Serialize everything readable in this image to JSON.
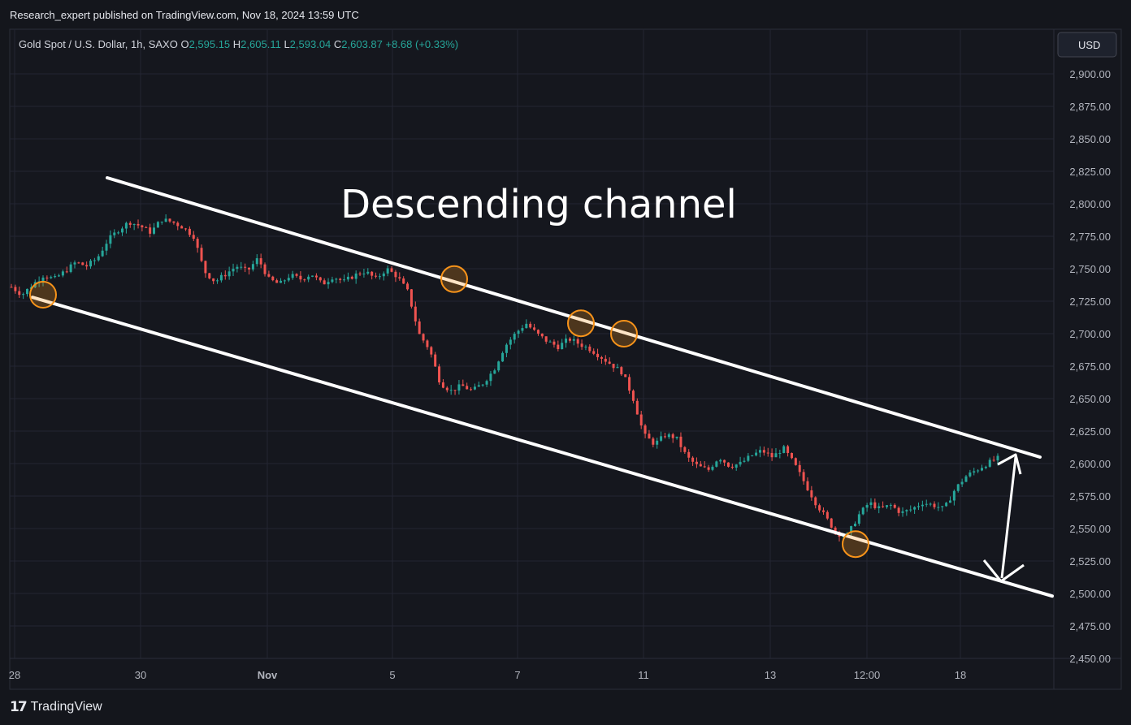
{
  "header": {
    "published": "Research_expert published on TradingView.com, Nov 18, 2024 13:59 UTC",
    "symbol": "Gold Spot / U.S. Dollar, 1h, SAXO",
    "ohlc": {
      "o_label": "O",
      "o_value": "2,595.15",
      "h_label": "H",
      "h_value": "2,605.11",
      "l_label": "L",
      "l_value": "2,593.04",
      "c_label": "C",
      "c_value": "2,603.87",
      "change": "+8.68 (+0.33%)"
    }
  },
  "currency_button": "USD",
  "annotation": "Descending channel",
  "footer": {
    "logo_mark": "17",
    "logo_text": "TradingView"
  },
  "colors": {
    "background": "#14161c",
    "up": "#26a69a",
    "down": "#ef5350",
    "channel": "#ffffff",
    "marker": "#f7931a"
  },
  "chart_data": {
    "type": "candlestick",
    "title": "Gold Spot / U.S. Dollar, 1h, SAXO",
    "ylim": [
      2450,
      2912
    ],
    "y_ticks": [
      "2,450.00",
      "2,475.00",
      "2,500.00",
      "2,525.00",
      "2,550.00",
      "2,575.00",
      "2,600.00",
      "2,625.00",
      "2,650.00",
      "2,675.00",
      "2,700.00",
      "2,725.00",
      "2,750.00",
      "2,775.00",
      "2,800.00",
      "2,825.00",
      "2,850.00",
      "2,875.00",
      "2,900.00"
    ],
    "x_ticks": [
      "28",
      "30",
      "Nov",
      "5",
      "7",
      "11",
      "13",
      "12:00",
      "18"
    ],
    "price_path": [
      2736,
      2730,
      2738,
      2745,
      2742,
      2748,
      2755,
      2752,
      2758,
      2772,
      2780,
      2786,
      2783,
      2778,
      2788,
      2786,
      2782,
      2775,
      2748,
      2740,
      2746,
      2752,
      2748,
      2758,
      2742,
      2738,
      2745,
      2742,
      2746,
      2738,
      2744,
      2740,
      2745,
      2748,
      2742,
      2750,
      2744,
      2732,
      2700,
      2688,
      2662,
      2656,
      2660,
      2656,
      2662,
      2672,
      2690,
      2700,
      2708,
      2700,
      2694,
      2690,
      2696,
      2692,
      2688,
      2682,
      2676,
      2670,
      2650,
      2622,
      2615,
      2622,
      2620,
      2605,
      2598,
      2595,
      2605,
      2598,
      2600,
      2606,
      2610,
      2605,
      2612,
      2600,
      2585,
      2570,
      2558,
      2546,
      2545,
      2560,
      2570,
      2565,
      2568,
      2562,
      2565,
      2570,
      2568,
      2565,
      2580,
      2590,
      2595,
      2600,
      2604
    ],
    "markers_at_price": [
      2730,
      2742,
      2708,
      2700,
      2538
    ],
    "channel_upper": [
      [
        2820,
        2605
      ]
    ],
    "channel_lower": [
      [
        2728,
        2498
      ]
    ]
  }
}
